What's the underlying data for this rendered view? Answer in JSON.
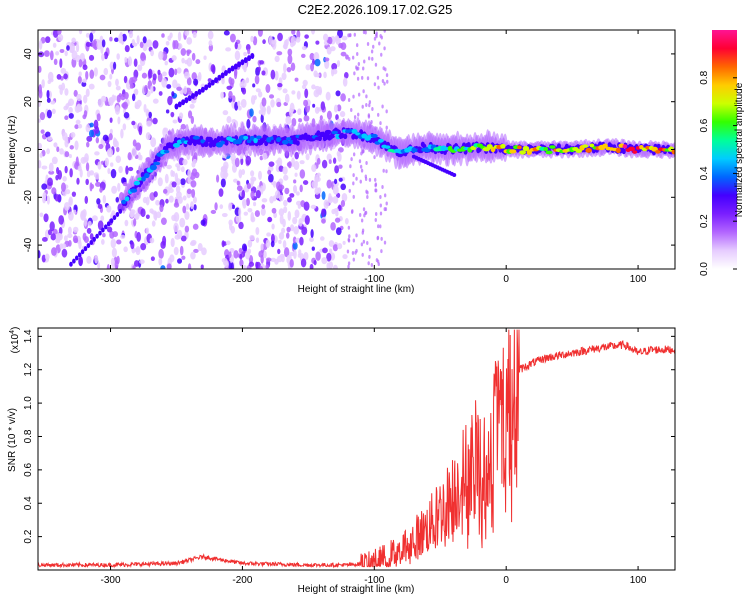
{
  "title": "C2E2.2026.109.17.02.G25",
  "chart_data": [
    {
      "type": "heatmap",
      "xlabel": "Height of straight line (km)",
      "ylabel": "Frequency (Hz)",
      "xlim": [
        -355,
        128
      ],
      "ylim": [
        -50,
        50
      ],
      "x_ticks": [
        "-300",
        "-200",
        "-100",
        "0",
        "100"
      ],
      "y_ticks": [
        "-40",
        "-20",
        "0",
        "20",
        "40"
      ],
      "colorbar": {
        "label": "Normalized spectral amplitude",
        "range": [
          0,
          1
        ],
        "ticks": [
          "0.0",
          "0.2",
          "0.4",
          "0.6",
          "0.8"
        ],
        "colormap": [
          "#ffffff",
          "#e6ccff",
          "#b366ff",
          "#7a1fff",
          "#4400ff",
          "#0066ff",
          "#00ccff",
          "#00ff99",
          "#33ff00",
          "#ccff00",
          "#ffcc00",
          "#ff6600",
          "#ff0033",
          "#ff1493"
        ]
      },
      "ridge_track": {
        "description_x": [
          -290,
          -270,
          -255,
          -240,
          -220,
          -200,
          -180,
          -160,
          -140,
          -120,
          -100,
          -90,
          -80,
          -60,
          -40,
          -20,
          0,
          40,
          80,
          100,
          128
        ],
        "frequency_hz": [
          -22,
          -8,
          2,
          4,
          3,
          4,
          4,
          4,
          6,
          7,
          5,
          1,
          -1,
          1,
          0,
          1,
          0,
          0,
          1,
          0,
          0
        ],
        "amplitude": [
          0.45,
          0.5,
          0.45,
          0.45,
          0.4,
          0.45,
          0.4,
          0.4,
          0.35,
          0.45,
          0.45,
          0.5,
          0.5,
          0.45,
          0.6,
          0.7,
          0.8,
          0.75,
          0.85,
          0.95,
          0.8
        ]
      },
      "secondary_track": {
        "x": [
          -250,
          -230,
          -210,
          -190
        ],
        "frequency_hz": [
          18,
          25,
          33,
          40
        ]
      }
    },
    {
      "type": "line",
      "xlabel": "Height of straight line (km)",
      "ylabel": "SNR (10 * v/v)",
      "multiplier": "(x10",
      "multiplier_exp": "4",
      "xlim": [
        -355,
        128
      ],
      "ylim": [
        0,
        1.45
      ],
      "x_ticks": [
        "-300",
        "-200",
        "-100",
        "0",
        "100"
      ],
      "y_ticks": [
        "0.2",
        "0.4",
        "0.6",
        "0.8",
        "1.0",
        "1.2",
        "1.4"
      ],
      "color": "#f03030",
      "series": [
        {
          "x": [
            -355,
            -300,
            -250,
            -230,
            -200,
            -150,
            -120,
            -105,
            -90,
            -75,
            -60,
            -50,
            -40,
            -30,
            -25,
            -20,
            -15,
            -10,
            -5,
            0,
            10,
            20,
            30,
            50,
            70,
            90,
            100,
            110,
            128
          ],
          "y": [
            0.03,
            0.03,
            0.04,
            0.08,
            0.04,
            0.03,
            0.03,
            0.04,
            0.08,
            0.15,
            0.25,
            0.35,
            0.45,
            0.6,
            0.7,
            0.65,
            0.6,
            0.85,
            0.95,
            1.0,
            1.2,
            1.24,
            1.27,
            1.3,
            1.33,
            1.35,
            1.3,
            1.32,
            1.32
          ]
        }
      ]
    }
  ]
}
